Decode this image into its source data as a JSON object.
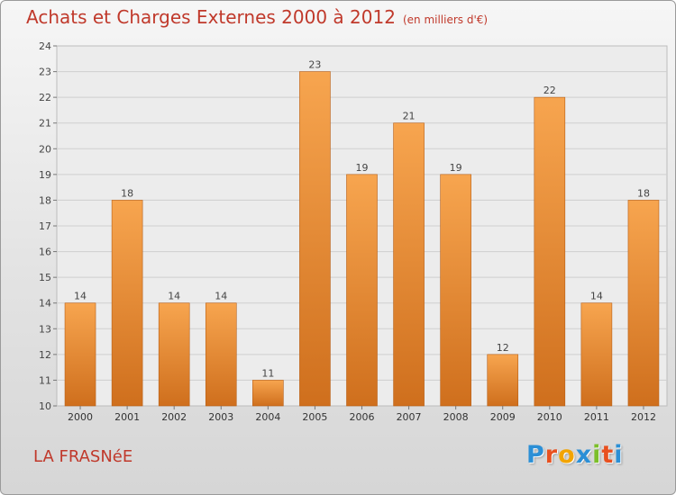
{
  "chart_data": {
    "type": "bar",
    "title": "Achats et Charges Externes 2000 à 2012",
    "subtitle": "(en milliers d'€)",
    "categories": [
      "2000",
      "2001",
      "2002",
      "2003",
      "2004",
      "2005",
      "2006",
      "2007",
      "2008",
      "2009",
      "2010",
      "2011",
      "2012"
    ],
    "values": [
      14,
      18,
      14,
      14,
      11,
      23,
      19,
      21,
      19,
      12,
      22,
      14,
      18
    ],
    "ylim": [
      10,
      24
    ],
    "yticks": [
      10,
      11,
      12,
      13,
      14,
      15,
      16,
      17,
      18,
      19,
      20,
      21,
      22,
      23,
      24
    ],
    "grid": true,
    "bar_color_top": "#f7a54f",
    "bar_color_bottom": "#cf6f1d"
  },
  "footer": {
    "commune": "LA FRASNéE",
    "logo_letters": [
      "P",
      "r",
      "o",
      "x",
      "i",
      "t",
      "i"
    ],
    "logo_colors": [
      "#2b8fd6",
      "#e8501f",
      "#f2a400",
      "#2b8fd6",
      "#7cbf2a",
      "#e8501f",
      "#2b8fd6"
    ]
  }
}
